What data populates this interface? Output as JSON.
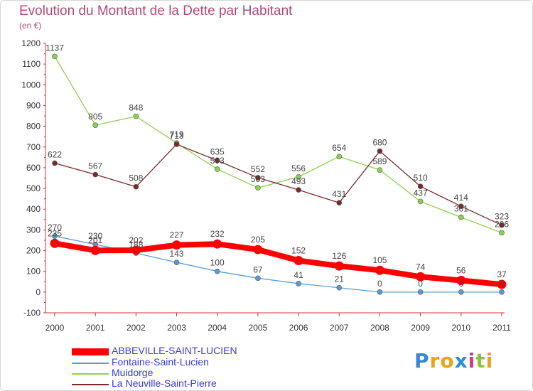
{
  "title": "Evolution du Montant de la Dette par Habitant",
  "unit_label": "(en €)",
  "logo_text": "Proxiti",
  "chart_data": {
    "type": "line",
    "title": "Evolution du Montant de la Dette par Habitant",
    "subtitle": "(en €)",
    "categories": [
      "2000",
      "2001",
      "2002",
      "2003",
      "2004",
      "2005",
      "2006",
      "2007",
      "2008",
      "2009",
      "2010",
      "2011"
    ],
    "ylim": [
      -100,
      1200
    ],
    "yticks": [
      -100,
      0,
      100,
      200,
      300,
      400,
      500,
      600,
      700,
      800,
      900,
      1000,
      1100,
      1200
    ],
    "grid": false,
    "legend_position": "bottom-left",
    "series": [
      {
        "name": "ABBEVILLE-SAINT-LUCIEN",
        "color": "#ff0000",
        "values": [
          235,
          201,
          202,
          227,
          232,
          205,
          152,
          126,
          105,
          74,
          56,
          37
        ]
      },
      {
        "name": "Fontaine-Saint-Lucien",
        "color": "#5b9bd5",
        "values": [
          270,
          230,
          188,
          143,
          100,
          67,
          41,
          21,
          0,
          0,
          0,
          0
        ]
      },
      {
        "name": "Muidorge",
        "color": "#8fd14f",
        "values": [
          1137,
          805,
          848,
          719,
          593,
          503,
          556,
          654,
          589,
          437,
          361,
          286
        ]
      },
      {
        "name": "La Neuville-Saint-Pierre",
        "color": "#7a2a2a",
        "values": [
          622,
          567,
          508,
          713,
          635,
          552,
          493,
          431,
          680,
          510,
          414,
          323
        ]
      }
    ]
  }
}
